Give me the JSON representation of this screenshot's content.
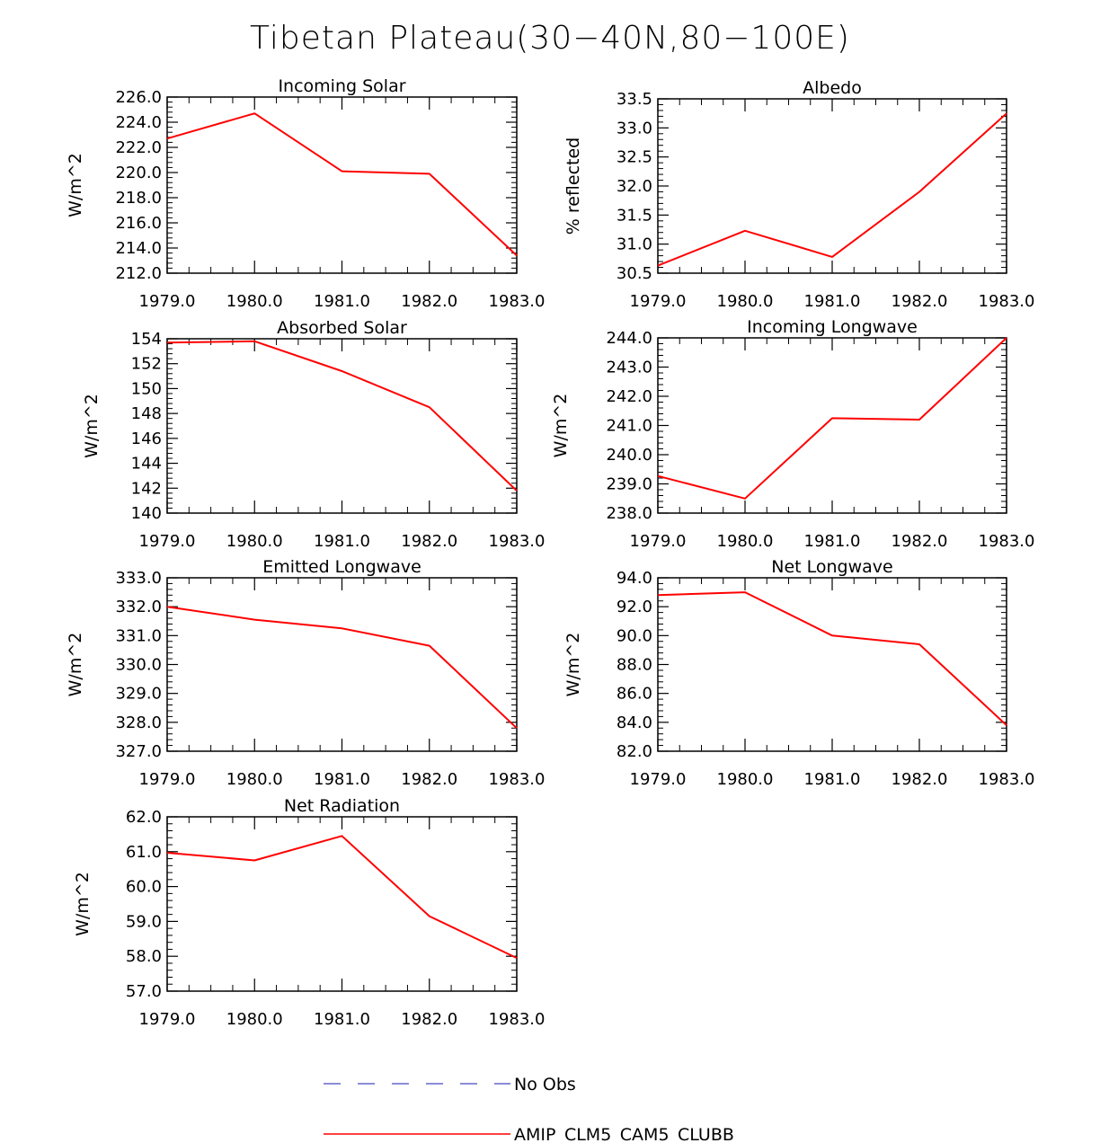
{
  "title": "Tibetan Plateau(30−40N,80−100E)",
  "colors": {
    "model": "#ff0000",
    "obs": "#6666cc",
    "axis": "#000000"
  },
  "legend": [
    {
      "label": "No Obs",
      "style": "dashed",
      "color": "#6666cc"
    },
    {
      "label": "AMIP_CLM5_CAM5_CLUBB",
      "style": "solid",
      "color": "#ff0000"
    }
  ],
  "chart_data": [
    {
      "type": "line",
      "title": "Incoming Solar",
      "ylabel": "W/m^2",
      "xlabel": "",
      "x": [
        1979,
        1980,
        1981,
        1982,
        1983
      ],
      "xticks": [
        "1979.0",
        "1980.0",
        "1981.0",
        "1982.0",
        "1983.0"
      ],
      "ylim": [
        212,
        226
      ],
      "yticks": [
        "212.0",
        "214.0",
        "216.0",
        "218.0",
        "220.0",
        "222.0",
        "224.0",
        "226.0"
      ],
      "ytick_values": [
        212,
        214,
        216,
        218,
        220,
        222,
        224,
        226
      ],
      "series": [
        {
          "name": "AMIP_CLM5_CAM5_CLUBB",
          "values": [
            222.7,
            224.7,
            220.1,
            219.9,
            213.4
          ]
        }
      ]
    },
    {
      "type": "line",
      "title": "Albedo",
      "ylabel": "% reflected",
      "xlabel": "",
      "x": [
        1979,
        1980,
        1981,
        1982,
        1983
      ],
      "xticks": [
        "1979.0",
        "1980.0",
        "1981.0",
        "1982.0",
        "1983.0"
      ],
      "ylim": [
        30.5,
        33.5
      ],
      "yticks": [
        "30.5",
        "31.0",
        "31.5",
        "32.0",
        "32.5",
        "33.0",
        "33.5"
      ],
      "ytick_values": [
        30.5,
        31.0,
        31.5,
        32.0,
        32.5,
        33.0,
        33.5
      ],
      "series": [
        {
          "name": "AMIP_CLM5_CAM5_CLUBB",
          "values": [
            30.63,
            31.23,
            30.78,
            31.9,
            33.25
          ]
        }
      ]
    },
    {
      "type": "line",
      "title": "Absorbed Solar",
      "ylabel": "W/m^2",
      "xlabel": "",
      "x": [
        1979,
        1980,
        1981,
        1982,
        1983
      ],
      "xticks": [
        "1979.0",
        "1980.0",
        "1981.0",
        "1982.0",
        "1983.0"
      ],
      "ylim": [
        140,
        154
      ],
      "yticks": [
        "140",
        "142",
        "144",
        "146",
        "148",
        "150",
        "152",
        "154"
      ],
      "ytick_values": [
        140,
        142,
        144,
        146,
        148,
        150,
        152,
        154
      ],
      "series": [
        {
          "name": "AMIP_CLM5_CAM5_CLUBB",
          "values": [
            153.7,
            153.8,
            151.4,
            148.5,
            141.8
          ]
        }
      ]
    },
    {
      "type": "line",
      "title": "Incoming Longwave",
      "ylabel": "W/m^2",
      "xlabel": "",
      "x": [
        1979,
        1980,
        1981,
        1982,
        1983
      ],
      "xticks": [
        "1979.0",
        "1980.0",
        "1981.0",
        "1982.0",
        "1983.0"
      ],
      "ylim": [
        238,
        244
      ],
      "yticks": [
        "238.0",
        "239.0",
        "240.0",
        "241.0",
        "242.0",
        "243.0",
        "244.0"
      ],
      "ytick_values": [
        238,
        239,
        240,
        241,
        242,
        243,
        244
      ],
      "series": [
        {
          "name": "AMIP_CLM5_CAM5_CLUBB",
          "values": [
            239.27,
            238.5,
            241.25,
            241.2,
            244.0
          ]
        }
      ]
    },
    {
      "type": "line",
      "title": "Emitted Longwave",
      "ylabel": "W/m^2",
      "xlabel": "",
      "x": [
        1979,
        1980,
        1981,
        1982,
        1983
      ],
      "xticks": [
        "1979.0",
        "1980.0",
        "1981.0",
        "1982.0",
        "1983.0"
      ],
      "ylim": [
        327,
        333
      ],
      "yticks": [
        "327.0",
        "328.0",
        "329.0",
        "330.0",
        "331.0",
        "332.0",
        "333.0"
      ],
      "ytick_values": [
        327,
        328,
        329,
        330,
        331,
        332,
        333
      ],
      "series": [
        {
          "name": "AMIP_CLM5_CAM5_CLUBB",
          "values": [
            332.0,
            331.55,
            331.25,
            330.65,
            327.8
          ]
        }
      ]
    },
    {
      "type": "line",
      "title": "Net Longwave",
      "ylabel": "W/m^2",
      "xlabel": "",
      "x": [
        1979,
        1980,
        1981,
        1982,
        1983
      ],
      "xticks": [
        "1979.0",
        "1980.0",
        "1981.0",
        "1982.0",
        "1983.0"
      ],
      "ylim": [
        82,
        94
      ],
      "yticks": [
        "82.0",
        "84.0",
        "86.0",
        "88.0",
        "90.0",
        "92.0",
        "94.0"
      ],
      "ytick_values": [
        82,
        84,
        86,
        88,
        90,
        92,
        94
      ],
      "series": [
        {
          "name": "AMIP_CLM5_CAM5_CLUBB",
          "values": [
            92.8,
            93.0,
            90.0,
            89.4,
            83.8
          ]
        }
      ]
    },
    {
      "type": "line",
      "title": "Net Radiation",
      "ylabel": "W/m^2",
      "xlabel": "",
      "x": [
        1979,
        1980,
        1981,
        1982,
        1983
      ],
      "xticks": [
        "1979.0",
        "1980.0",
        "1981.0",
        "1982.0",
        "1983.0"
      ],
      "ylim": [
        57,
        62
      ],
      "yticks": [
        "57.0",
        "58.0",
        "59.0",
        "60.0",
        "61.0",
        "62.0"
      ],
      "ytick_values": [
        57,
        58,
        59,
        60,
        61,
        62
      ],
      "series": [
        {
          "name": "AMIP_CLM5_CAM5_CLUBB",
          "values": [
            60.97,
            60.75,
            61.45,
            59.15,
            57.95
          ]
        }
      ]
    }
  ]
}
